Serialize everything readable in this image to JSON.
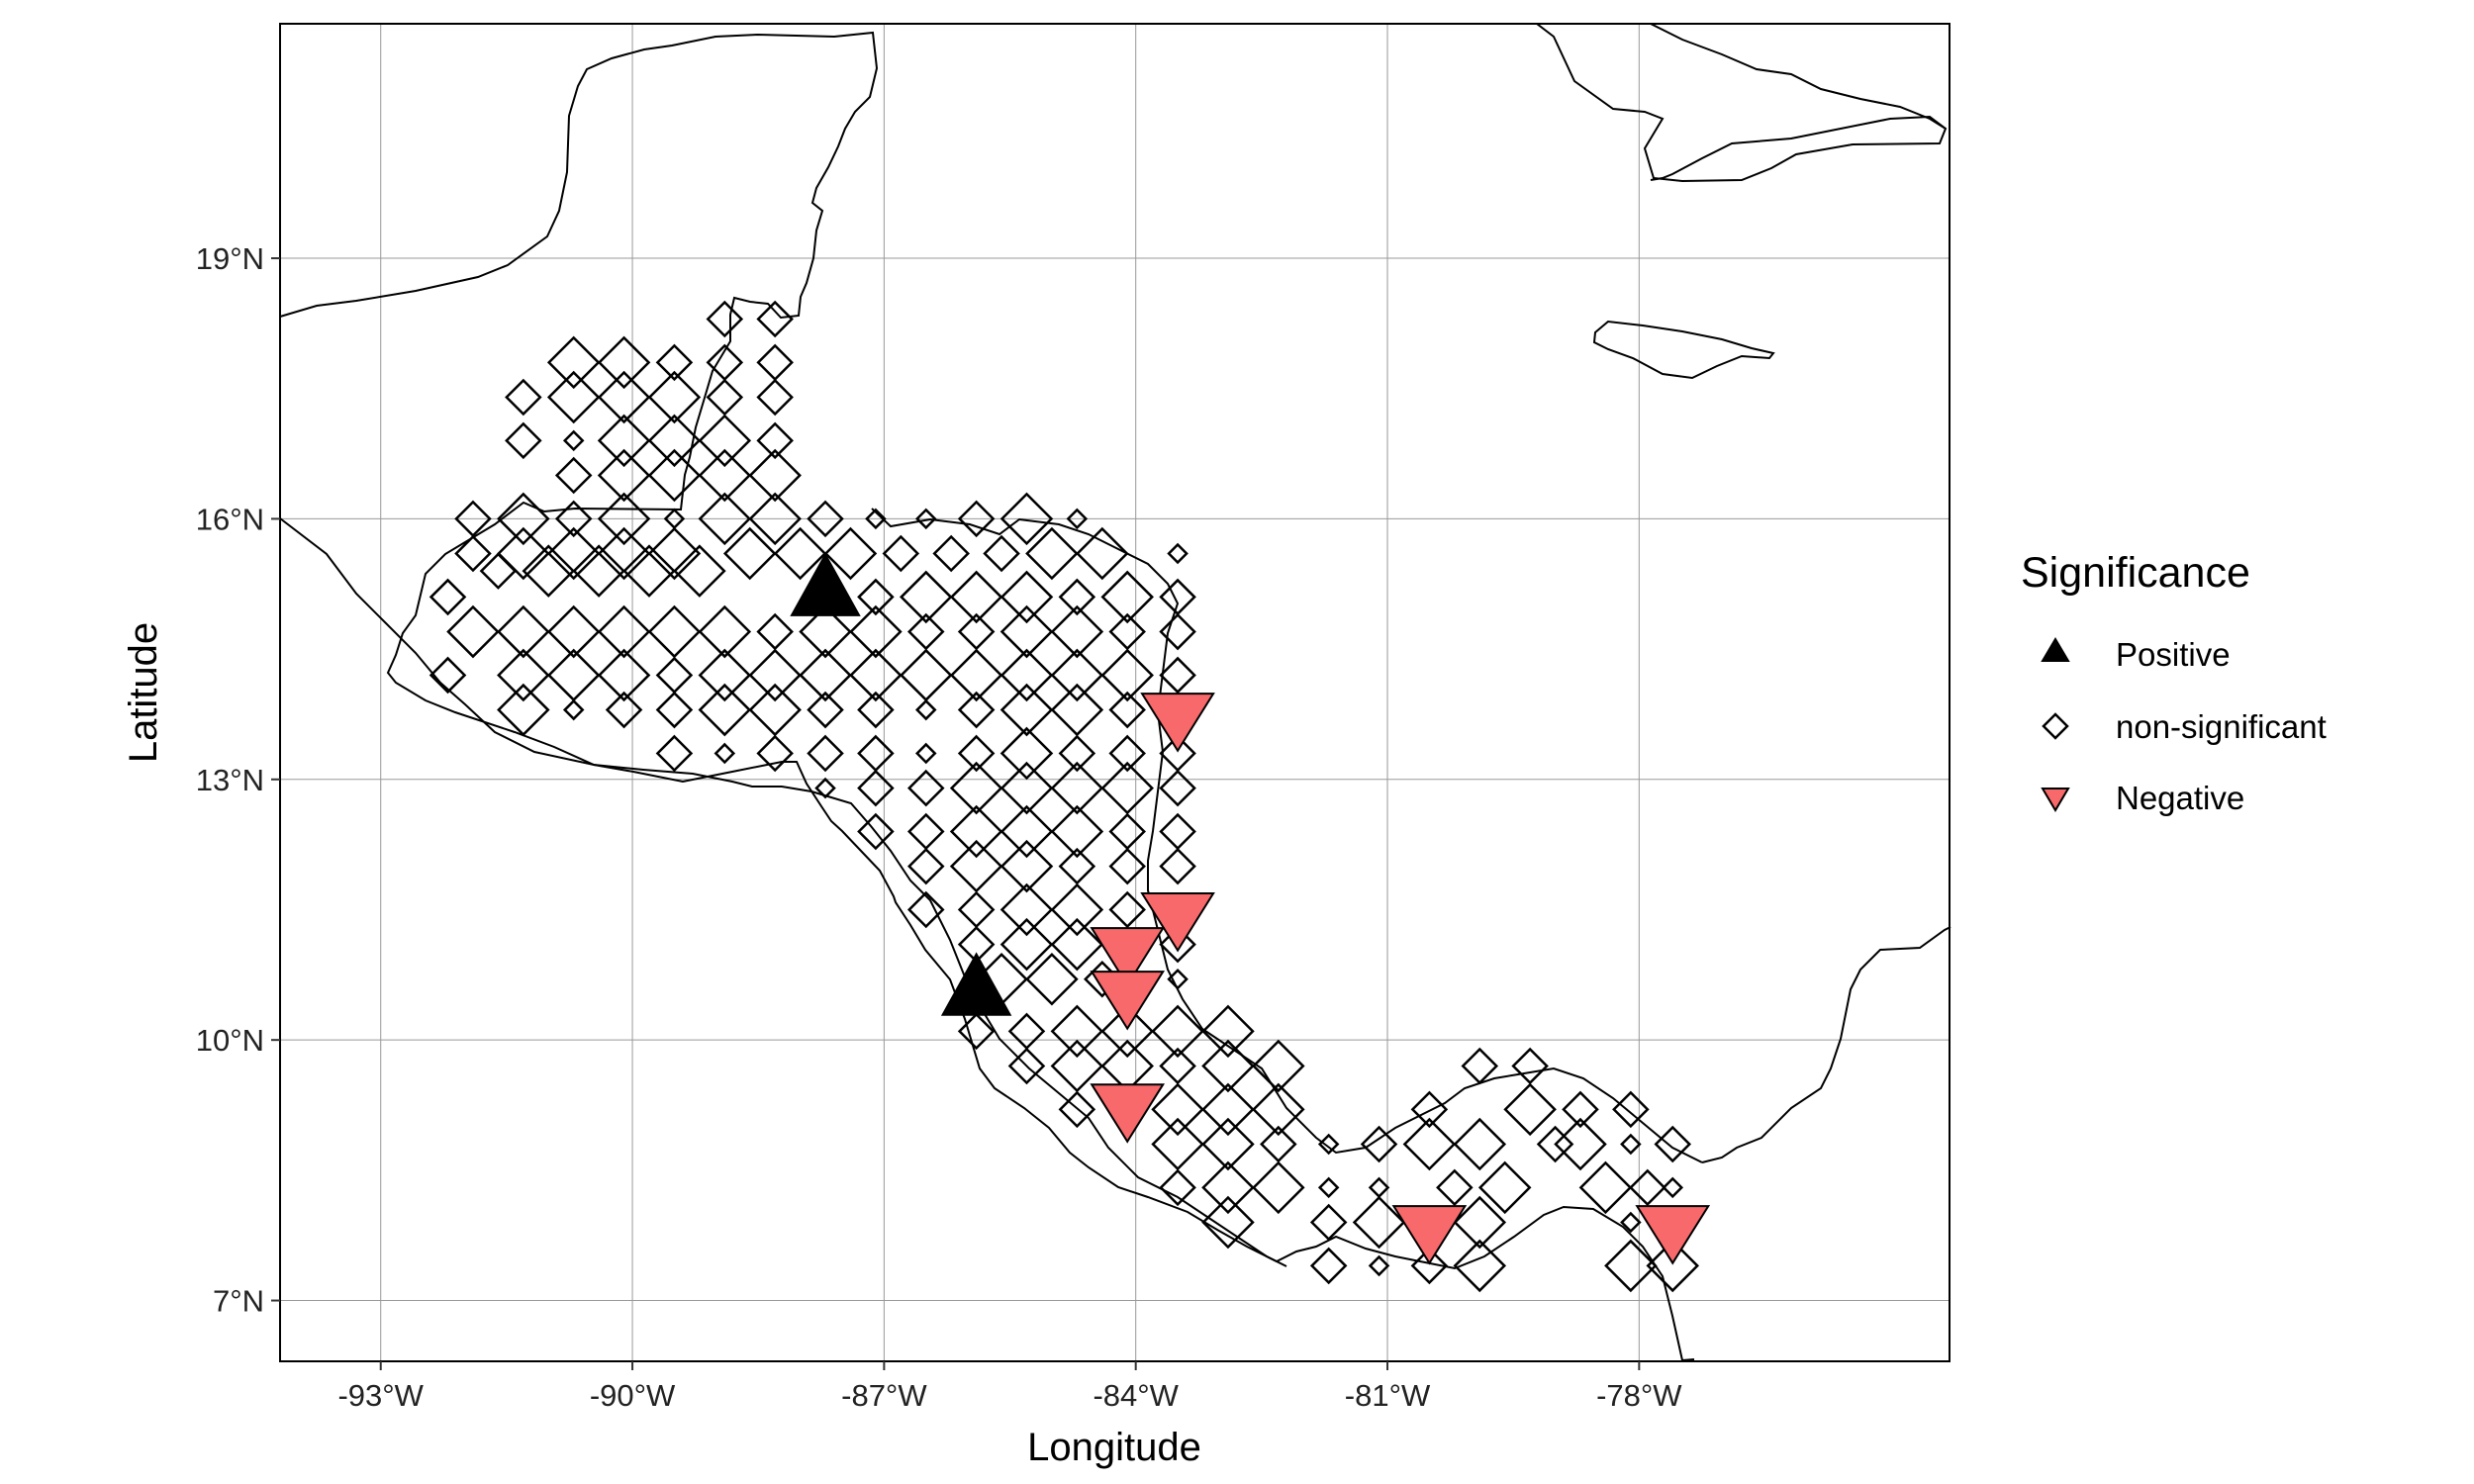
{
  "chart_data": {
    "type": "scatter",
    "map_type": "point symbol map of Central America",
    "xlabel": "Longitude",
    "ylabel": "Latitude",
    "x_range": [
      -94.2,
      -74.3
    ],
    "y_range": [
      6.3,
      21.7
    ],
    "x_ticks": [
      -93,
      -90,
      -87,
      -84,
      -81,
      -78
    ],
    "x_tick_labels": [
      "-93°W",
      "-90°W",
      "-87°W",
      "-84°W",
      "-81°W",
      "-78°W"
    ],
    "y_ticks": [
      7,
      10,
      13,
      16,
      19
    ],
    "y_tick_labels": [
      "7°N",
      "10°N",
      "13°N",
      "16°N",
      "19°N"
    ],
    "grid": true,
    "legend": {
      "title": "Significance",
      "position": "right",
      "entries": [
        {
          "label": "Positive",
          "shape": "triangle-up",
          "color": "#000000"
        },
        {
          "label": "non-significant",
          "shape": "diamond-open",
          "color": "#000000"
        },
        {
          "label": "Negative",
          "shape": "triangle-down",
          "color": "#F8696B"
        }
      ]
    },
    "colors": {
      "positive": "#000000",
      "negative": "#F8696B",
      "neutral_stroke": "#000000",
      "coast": "#000000",
      "grid": "#999999"
    },
    "positive_points": [
      [
        -87.7,
        15.2
      ],
      [
        -85.9,
        10.6
      ]
    ],
    "negative_points": [
      [
        -83.5,
        13.7
      ],
      [
        -83.5,
        11.4
      ],
      [
        -84.1,
        11.0
      ],
      [
        -84.1,
        10.5
      ],
      [
        -84.1,
        9.2
      ],
      [
        -80.5,
        7.8
      ],
      [
        -77.6,
        7.8
      ]
    ],
    "nonsig_points": [
      [
        -91.3,
        17.4,
        1
      ],
      [
        -90.7,
        17.8,
        2
      ],
      [
        -90.1,
        17.8,
        2
      ],
      [
        -89.5,
        17.8,
        1
      ],
      [
        -88.9,
        18.3,
        1
      ],
      [
        -88.3,
        18.3,
        1
      ],
      [
        -90.7,
        17.4,
        2
      ],
      [
        -90.1,
        17.4,
        2
      ],
      [
        -89.5,
        17.4,
        2
      ],
      [
        -88.9,
        17.8,
        1
      ],
      [
        -88.3,
        17.8,
        1
      ],
      [
        -91.3,
        16.9,
        1
      ],
      [
        -90.7,
        16.9,
        0
      ],
      [
        -90.1,
        16.9,
        2
      ],
      [
        -89.5,
        16.9,
        2
      ],
      [
        -88.9,
        17.4,
        1
      ],
      [
        -88.3,
        17.4,
        1
      ],
      [
        -90.7,
        16.5,
        1
      ],
      [
        -90.1,
        16.5,
        2
      ],
      [
        -89.5,
        16.5,
        2
      ],
      [
        -88.9,
        16.9,
        2
      ],
      [
        -88.3,
        16.9,
        1
      ],
      [
        -91.9,
        16.0,
        1
      ],
      [
        -91.3,
        16.0,
        2
      ],
      [
        -90.7,
        16.0,
        1
      ],
      [
        -90.1,
        16.0,
        2
      ],
      [
        -89.5,
        16.0,
        0
      ],
      [
        -88.9,
        16.5,
        2
      ],
      [
        -88.3,
        16.5,
        2
      ],
      [
        -91.9,
        15.6,
        1
      ],
      [
        -91.3,
        15.6,
        2
      ],
      [
        -90.7,
        15.6,
        2
      ],
      [
        -90.1,
        15.6,
        2
      ],
      [
        -89.5,
        15.6,
        2
      ],
      [
        -88.9,
        16.0,
        2
      ],
      [
        -88.3,
        16.0,
        2
      ],
      [
        -87.7,
        16.0,
        1
      ],
      [
        -87.1,
        16.0,
        0
      ],
      [
        -86.5,
        16.0,
        0
      ],
      [
        -85.9,
        16.0,
        1
      ],
      [
        -85.3,
        16.0,
        2
      ],
      [
        -84.7,
        16.0,
        0
      ],
      [
        -92.2,
        15.1,
        1
      ],
      [
        -91.6,
        15.4,
        1
      ],
      [
        -91.0,
        15.4,
        2
      ],
      [
        -90.4,
        15.4,
        2
      ],
      [
        -89.8,
        15.4,
        2
      ],
      [
        -89.2,
        15.4,
        2
      ],
      [
        -88.6,
        15.6,
        2
      ],
      [
        -88.0,
        15.6,
        2
      ],
      [
        -87.4,
        15.6,
        2
      ],
      [
        -86.8,
        15.6,
        1
      ],
      [
        -86.2,
        15.6,
        1
      ],
      [
        -85.6,
        15.6,
        1
      ],
      [
        -85.0,
        15.6,
        2
      ],
      [
        -84.4,
        15.6,
        2
      ],
      [
        -83.5,
        15.6,
        0
      ],
      [
        -91.9,
        14.7,
        2
      ],
      [
        -91.3,
        14.7,
        2
      ],
      [
        -90.7,
        14.7,
        2
      ],
      [
        -90.1,
        14.7,
        2
      ],
      [
        -89.5,
        14.7,
        2
      ],
      [
        -88.9,
        14.7,
        2
      ],
      [
        -88.3,
        14.7,
        1
      ],
      [
        -87.1,
        15.1,
        1
      ],
      [
        -86.5,
        15.1,
        2
      ],
      [
        -85.9,
        15.1,
        2
      ],
      [
        -85.3,
        15.1,
        2
      ],
      [
        -84.7,
        15.1,
        1
      ],
      [
        -84.1,
        15.1,
        2
      ],
      [
        -83.5,
        15.1,
        1
      ],
      [
        -91.3,
        14.2,
        2
      ],
      [
        -90.7,
        14.2,
        2
      ],
      [
        -90.1,
        14.2,
        2
      ],
      [
        -89.5,
        14.2,
        1
      ],
      [
        -88.9,
        14.2,
        2
      ],
      [
        -88.3,
        14.2,
        2
      ],
      [
        -87.7,
        14.7,
        2
      ],
      [
        -87.1,
        14.7,
        2
      ],
      [
        -86.5,
        14.7,
        1
      ],
      [
        -85.9,
        14.7,
        1
      ],
      [
        -85.3,
        14.7,
        2
      ],
      [
        -84.7,
        14.7,
        2
      ],
      [
        -84.1,
        14.7,
        1
      ],
      [
        -83.5,
        14.7,
        1
      ],
      [
        -92.2,
        14.2,
        1
      ],
      [
        -90.7,
        13.8,
        0
      ],
      [
        -90.1,
        13.8,
        1
      ],
      [
        -89.5,
        13.8,
        1
      ],
      [
        -88.9,
        13.8,
        2
      ],
      [
        -88.3,
        13.8,
        2
      ],
      [
        -87.7,
        14.2,
        2
      ],
      [
        -87.1,
        14.2,
        2
      ],
      [
        -86.5,
        14.2,
        2
      ],
      [
        -85.9,
        14.2,
        2
      ],
      [
        -85.3,
        14.2,
        2
      ],
      [
        -84.7,
        14.2,
        2
      ],
      [
        -84.1,
        14.2,
        2
      ],
      [
        -83.5,
        14.2,
        1
      ],
      [
        -91.3,
        13.8,
        2
      ],
      [
        -89.5,
        13.3,
        1
      ],
      [
        -88.9,
        13.3,
        0
      ],
      [
        -88.3,
        13.3,
        1
      ],
      [
        -87.7,
        13.3,
        1
      ],
      [
        -87.1,
        13.3,
        1
      ],
      [
        -87.7,
        13.8,
        1
      ],
      [
        -87.1,
        13.8,
        1
      ],
      [
        -86.5,
        13.8,
        0
      ],
      [
        -85.9,
        13.8,
        1
      ],
      [
        -85.3,
        13.8,
        2
      ],
      [
        -84.7,
        13.8,
        2
      ],
      [
        -84.1,
        13.8,
        1
      ],
      [
        -87.7,
        12.9,
        0
      ],
      [
        -87.1,
        12.9,
        1
      ],
      [
        -86.5,
        13.3,
        0
      ],
      [
        -85.9,
        13.3,
        1
      ],
      [
        -85.3,
        13.3,
        2
      ],
      [
        -84.7,
        13.3,
        1
      ],
      [
        -84.1,
        13.3,
        1
      ],
      [
        -83.5,
        13.3,
        1
      ],
      [
        -86.5,
        12.9,
        1
      ],
      [
        -85.9,
        12.9,
        2
      ],
      [
        -85.3,
        12.9,
        2
      ],
      [
        -84.7,
        12.9,
        2
      ],
      [
        -84.1,
        12.9,
        2
      ],
      [
        -83.5,
        12.9,
        1
      ],
      [
        -87.1,
        12.4,
        1
      ],
      [
        -86.5,
        12.4,
        1
      ],
      [
        -85.9,
        12.4,
        2
      ],
      [
        -85.3,
        12.4,
        2
      ],
      [
        -84.7,
        12.4,
        2
      ],
      [
        -84.1,
        12.4,
        1
      ],
      [
        -83.5,
        12.4,
        1
      ],
      [
        -86.5,
        12.0,
        1
      ],
      [
        -85.9,
        12.0,
        2
      ],
      [
        -85.3,
        12.0,
        2
      ],
      [
        -84.7,
        12.0,
        1
      ],
      [
        -84.1,
        12.0,
        1
      ],
      [
        -83.5,
        12.0,
        1
      ],
      [
        -86.5,
        11.5,
        1
      ],
      [
        -85.9,
        11.5,
        1
      ],
      [
        -85.3,
        11.5,
        2
      ],
      [
        -84.7,
        11.5,
        2
      ],
      [
        -84.1,
        11.5,
        1
      ],
      [
        -85.9,
        11.1,
        1
      ],
      [
        -85.3,
        11.1,
        2
      ],
      [
        -84.7,
        11.1,
        2
      ],
      [
        -83.5,
        11.1,
        1
      ],
      [
        -85.6,
        10.7,
        2
      ],
      [
        -85.0,
        10.7,
        2
      ],
      [
        -84.4,
        10.7,
        1
      ],
      [
        -83.5,
        10.7,
        0
      ],
      [
        -85.9,
        10.1,
        1
      ],
      [
        -85.3,
        10.1,
        1
      ],
      [
        -84.7,
        10.1,
        2
      ],
      [
        -84.1,
        10.1,
        2
      ],
      [
        -83.5,
        10.1,
        2
      ],
      [
        -82.9,
        10.1,
        2
      ],
      [
        -85.3,
        9.7,
        1
      ],
      [
        -84.7,
        9.7,
        2
      ],
      [
        -84.1,
        9.7,
        2
      ],
      [
        -83.5,
        9.7,
        1
      ],
      [
        -82.9,
        9.7,
        2
      ],
      [
        -82.3,
        9.7,
        2
      ],
      [
        -84.7,
        9.2,
        1
      ],
      [
        -83.5,
        9.2,
        2
      ],
      [
        -82.9,
        9.2,
        2
      ],
      [
        -82.3,
        9.2,
        2
      ],
      [
        -83.5,
        8.8,
        2
      ],
      [
        -82.9,
        8.8,
        2
      ],
      [
        -82.3,
        8.8,
        1
      ],
      [
        -81.7,
        8.8,
        0
      ],
      [
        -81.1,
        8.8,
        1
      ],
      [
        -80.5,
        9.2,
        1
      ],
      [
        -79.9,
        9.7,
        1
      ],
      [
        -79.3,
        9.7,
        1
      ],
      [
        -78.7,
        9.2,
        1
      ],
      [
        -78.1,
        9.2,
        1
      ],
      [
        -83.5,
        8.3,
        1
      ],
      [
        -82.9,
        8.3,
        2
      ],
      [
        -82.3,
        8.3,
        2
      ],
      [
        -81.7,
        8.3,
        0
      ],
      [
        -81.1,
        8.3,
        0
      ],
      [
        -80.5,
        8.8,
        2
      ],
      [
        -79.9,
        8.8,
        2
      ],
      [
        -79.3,
        9.2,
        2
      ],
      [
        -78.7,
        8.8,
        2
      ],
      [
        -78.1,
        8.8,
        0
      ],
      [
        -77.6,
        8.8,
        1
      ],
      [
        -82.9,
        7.9,
        2
      ],
      [
        -81.7,
        7.9,
        1
      ],
      [
        -81.1,
        7.9,
        2
      ],
      [
        -80.2,
        8.3,
        1
      ],
      [
        -79.6,
        8.3,
        2
      ],
      [
        -79.0,
        8.8,
        1
      ],
      [
        -78.4,
        8.3,
        2
      ],
      [
        -77.9,
        8.3,
        1
      ],
      [
        -77.6,
        8.3,
        0
      ],
      [
        -81.7,
        7.4,
        1
      ],
      [
        -81.1,
        7.4,
        0
      ],
      [
        -80.5,
        7.4,
        1
      ],
      [
        -79.9,
        7.4,
        2
      ],
      [
        -79.9,
        7.9,
        2
      ],
      [
        -78.1,
        7.9,
        0
      ],
      [
        -78.1,
        7.4,
        2
      ],
      [
        -77.6,
        7.4,
        2
      ]
    ]
  }
}
